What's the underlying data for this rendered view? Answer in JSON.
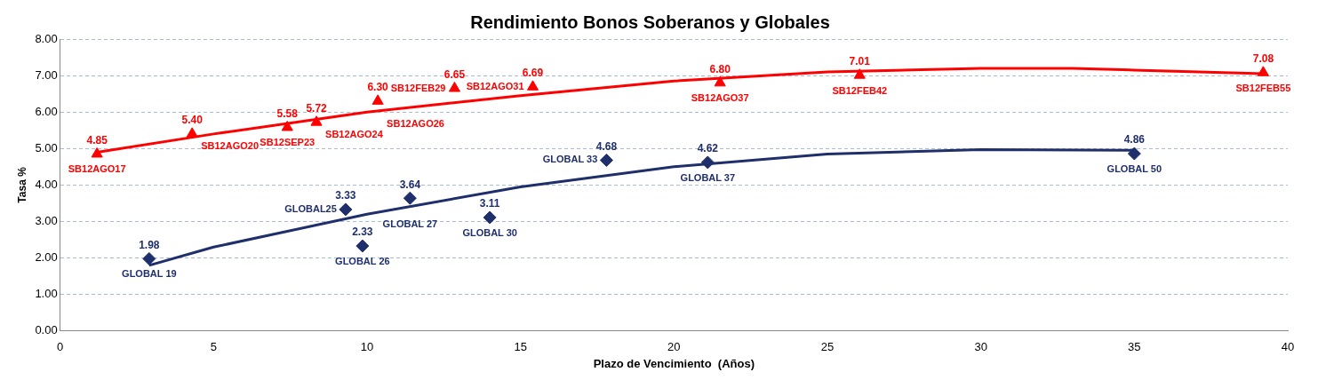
{
  "chart_data": {
    "type": "scatter",
    "title": "Rendimiento Bonos Soberanos y Globales",
    "xlabel": "Plazo de Vencimiento  (Años)",
    "ylabel": "Tasa %",
    "xlim": [
      0,
      40
    ],
    "xticks": [
      0,
      5,
      10,
      15,
      20,
      25,
      30,
      35,
      40
    ],
    "ylim": [
      0,
      8
    ],
    "yticks": [
      {
        "value": 0,
        "label": "0.00"
      },
      {
        "value": 1,
        "label": "1.00"
      },
      {
        "value": 2,
        "label": "2.00"
      },
      {
        "value": 3,
        "label": "3.00"
      },
      {
        "value": 4,
        "label": "4.00"
      },
      {
        "value": 5,
        "label": "5.00"
      },
      {
        "value": 6,
        "label": "6.00"
      },
      {
        "value": 7,
        "label": "7.00"
      },
      {
        "value": 8,
        "label": "8.00"
      }
    ],
    "grid": "y",
    "legend": false,
    "series": [
      {
        "type": "line",
        "color": "#ff0000",
        "marker": "none",
        "x": [
          1.2,
          5,
          10,
          15,
          20,
          25,
          30,
          33,
          35,
          39.2
        ],
        "values": [
          4.9,
          5.4,
          6.0,
          6.45,
          6.85,
          7.1,
          7.2,
          7.2,
          7.15,
          7.05
        ]
      },
      {
        "type": "line",
        "color": "#1f2f6b",
        "marker": "none",
        "x": [
          2.9,
          5,
          10,
          15,
          20,
          25,
          30,
          35
        ],
        "values": [
          1.8,
          2.3,
          3.2,
          3.95,
          4.5,
          4.85,
          4.97,
          4.95
        ]
      },
      {
        "type": "scatter",
        "color": "#ff0000",
        "marker": "triangle",
        "x": [
          1.2,
          4.3,
          7.4,
          8.35,
          10.35,
          12.85,
          15.4,
          21.5,
          26.05,
          39.2
        ],
        "values": [
          4.85,
          5.4,
          5.58,
          5.72,
          6.3,
          6.65,
          6.69,
          6.8,
          7.01,
          7.08
        ],
        "value_labels": [
          "4.85",
          "5.40",
          "5.58",
          "5.72",
          "6.30",
          "6.65",
          "6.69",
          "6.80",
          "7.01",
          "7.08"
        ]
      },
      {
        "type": "scatter",
        "color": "#1f2f6b",
        "marker": "diamond",
        "x": [
          2.9,
          9.3,
          9.85,
          11.4,
          14.0,
          17.8,
          21.1,
          35.0
        ],
        "values": [
          1.98,
          3.33,
          2.33,
          3.64,
          3.11,
          4.68,
          4.62,
          4.86
        ],
        "value_labels": [
          "1.98",
          "3.33",
          "2.33",
          "3.64",
          "3.11",
          "4.68",
          "4.62",
          "4.86"
        ]
      }
    ],
    "annotations": [
      {
        "text": "SB12AGO17",
        "x": 1.2,
        "y": 4.85
      },
      {
        "text": "SB12AGO20",
        "x": 4.3,
        "y": 5.4
      },
      {
        "text": "SB12SEP23",
        "x": 7.4,
        "y": 5.58
      },
      {
        "text": "SB12AGO24",
        "x": 8.35,
        "y": 5.72
      },
      {
        "text": "SB12AGO26",
        "x": 10.35,
        "y": 6.3
      },
      {
        "text": "SB12FEB29",
        "x": 12.85,
        "y": 6.65
      },
      {
        "text": "SB12AGO31",
        "x": 15.4,
        "y": 6.69
      },
      {
        "text": "SB12AGO37",
        "x": 21.5,
        "y": 6.8
      },
      {
        "text": "SB12FEB42",
        "x": 26.05,
        "y": 7.01
      },
      {
        "text": "SB12FEB55",
        "x": 39.2,
        "y": 7.08
      },
      {
        "text": "GLOBAL 19",
        "x": 2.9,
        "y": 1.98
      },
      {
        "text": "GLOBAL25",
        "x": 9.3,
        "y": 3.33
      },
      {
        "text": "GLOBAL 26",
        "x": 9.85,
        "y": 2.33
      },
      {
        "text": "GLOBAL 27",
        "x": 11.4,
        "y": 3.64
      },
      {
        "text": "GLOBAL 30",
        "x": 14.0,
        "y": 3.11
      },
      {
        "text": "GLOBAL 33",
        "x": 17.8,
        "y": 4.68
      },
      {
        "text": "GLOBAL 37",
        "x": 21.1,
        "y": 4.62
      },
      {
        "text": "GLOBAL 50",
        "x": 35.0,
        "y": 4.86
      }
    ]
  }
}
